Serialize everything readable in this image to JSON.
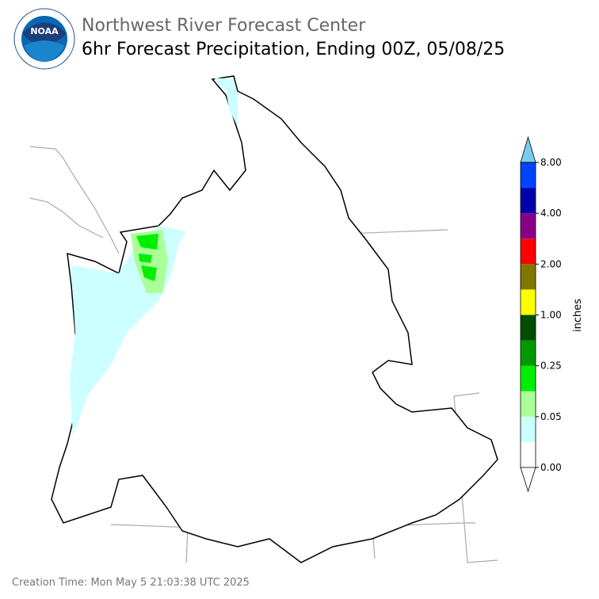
{
  "header": {
    "logo_text": "NOAA",
    "title": "Northwest River Forecast Center",
    "subtitle": "6hr Forecast Precipitation, Ending 00Z, 05/08/25"
  },
  "colorbar": {
    "label": "inches",
    "colors": [
      "#ffffff",
      "#ccffff",
      "#aaff99",
      "#00ee00",
      "#009900",
      "#004d00",
      "#ffff00",
      "#807800",
      "#ff0000",
      "#880088",
      "#0000aa",
      "#0044ff"
    ],
    "extend_color": "#77ccee",
    "ticks": [
      {
        "value": 0,
        "label": "0.00"
      },
      {
        "value": 0.05,
        "label": "0.05"
      },
      {
        "value": 0.25,
        "label": "0.25"
      },
      {
        "value": 1,
        "label": "1.00"
      },
      {
        "value": 2,
        "label": "2.00"
      },
      {
        "value": 4,
        "label": "4.00"
      },
      {
        "value": 8,
        "label": "8.00"
      }
    ]
  },
  "footer": {
    "creation_time": "Creation Time: Mon May 5 21:03:38 UTC 2025"
  }
}
